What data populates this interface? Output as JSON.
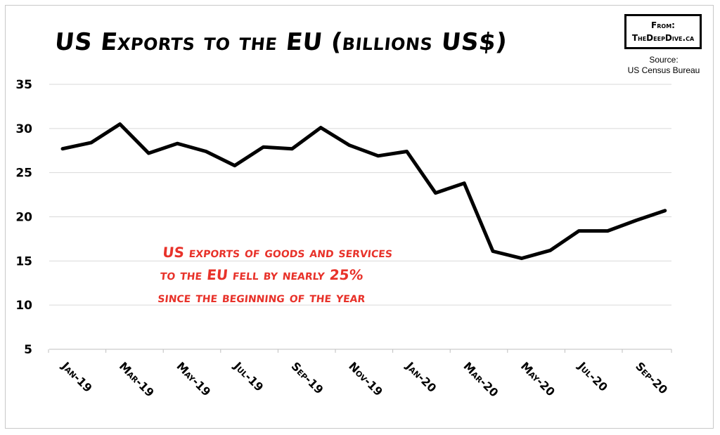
{
  "chart_data": {
    "type": "line",
    "title": "US Exports to the EU (billions US$)",
    "badge": [
      "From:",
      "TheDeepDive.ca"
    ],
    "source": [
      "Source:",
      "US Census Bureau"
    ],
    "annotation": [
      "US exports of goods and services",
      "to the EU fell by nearly 25%",
      "since the beginning of the year"
    ],
    "yticks": [
      5,
      10,
      15,
      20,
      25,
      30,
      35
    ],
    "ylim": [
      5,
      35
    ],
    "xticks": [
      "Jan-19",
      "Mar-19",
      "May-19",
      "Jul-19",
      "Sep-19",
      "Nov-19",
      "Jan-20",
      "Mar-20",
      "May-20",
      "Jul-20",
      "Sep-20"
    ],
    "x": [
      "Jan-19",
      "Feb-19",
      "Mar-19",
      "Apr-19",
      "May-19",
      "Jun-19",
      "Jul-19",
      "Aug-19",
      "Sep-19",
      "Oct-19",
      "Nov-19",
      "Dec-19",
      "Jan-20",
      "Feb-20",
      "Mar-20",
      "Apr-20",
      "May-20",
      "Jun-20",
      "Jul-20",
      "Aug-20",
      "Sep-20",
      "Oct-20"
    ],
    "series": [
      {
        "values": [
          27.7,
          28.4,
          30.5,
          27.2,
          28.3,
          27.4,
          25.8,
          27.9,
          27.7,
          30.1,
          28.1,
          26.9,
          27.4,
          22.7,
          23.8,
          16.1,
          15.3,
          16.2,
          18.4,
          18.4,
          19.6,
          20.7
        ]
      }
    ],
    "grid": true,
    "line_color": "#000000",
    "annotation_color": "#e8322a"
  }
}
